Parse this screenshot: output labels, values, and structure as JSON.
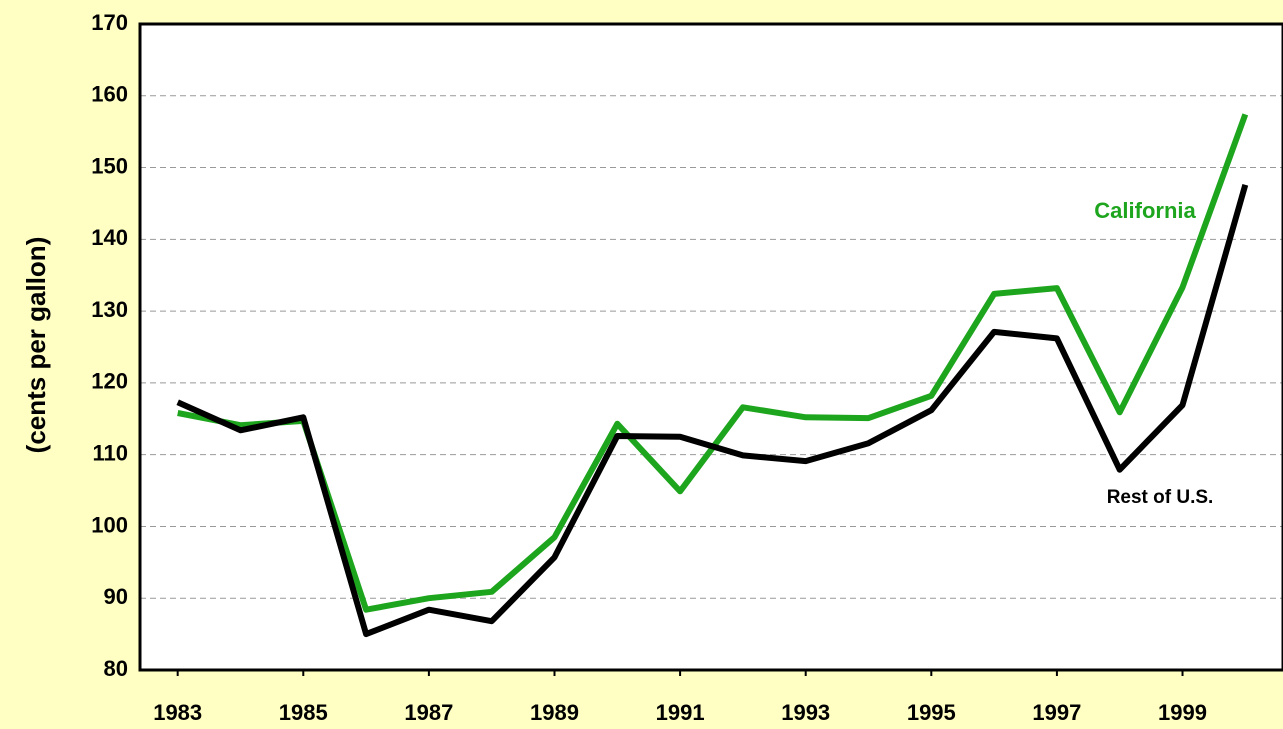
{
  "chart_data": {
    "type": "line",
    "y_label": "(cents per gallon)",
    "x": [
      1983,
      1984,
      1985,
      1986,
      1987,
      1988,
      1989,
      1990,
      1991,
      1992,
      1993,
      1994,
      1995,
      1996,
      1997,
      1998,
      1999,
      2000
    ],
    "series": [
      {
        "name": "California",
        "color": "#1ea51e",
        "values": [
          115.8,
          114.1,
          114.7,
          88.4,
          90,
          90.9,
          98.5,
          114.3,
          104.9,
          116.6,
          115.2,
          115.1,
          118.2,
          132.4,
          133.2,
          115.9,
          133.3,
          157.4
        ]
      },
      {
        "name": "Rest of U.S.",
        "color": "#000000",
        "values": [
          117.3,
          113.4,
          115.2,
          85,
          88.4,
          86.8,
          95.7,
          112.6,
          112.5,
          109.9,
          109.1,
          111.6,
          116.2,
          127.1,
          126.2,
          107.9,
          116.9,
          147.6
        ]
      }
    ],
    "xlim": [
      1982.4,
      2000.6
    ],
    "xticks": [
      1983,
      1985,
      1987,
      1989,
      1991,
      1993,
      1995,
      1997,
      1999
    ],
    "ylim": [
      80,
      170
    ],
    "yticks": [
      80,
      90,
      100,
      110,
      120,
      130,
      140,
      150,
      160,
      170
    ],
    "grid": true
  }
}
